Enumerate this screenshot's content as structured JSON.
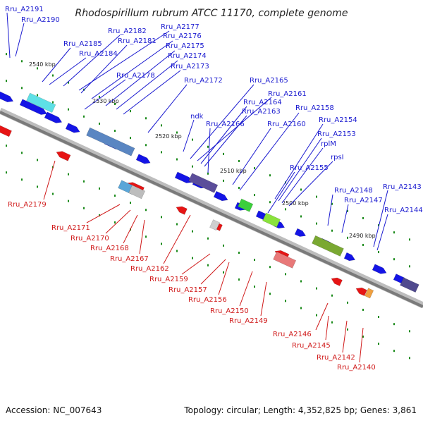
{
  "title": "Rhodospirillum rubrum ATCC 11170, complete genome",
  "footer": {
    "accession": "Accession: NC_007643",
    "topology": "Topology: circular; Length: 4,352,825 bp; Genes: 3,861"
  },
  "colors": {
    "forward_arrows": "#1414e6",
    "reverse_arrows": "#e61414",
    "backbone": "#888888",
    "tick": "#1a8a1a",
    "label_blue": "#1a1ad0",
    "label_red": "#d01a1a"
  },
  "scale_ticks": [
    "2540 kbp",
    "2530 kbp",
    "2520 kbp",
    "2510 kbp",
    "2500 kbp",
    "2490 kbp"
  ],
  "labels_top": [
    "Rru_A2191",
    "Rru_A2190",
    "Rru_A2182",
    "Rru_A2177",
    "Rru_A2185",
    "Rru_A2181",
    "Rru_A2176",
    "Rru_A2184",
    "Rru_A2175",
    "Rru_A2174",
    "Rru_A2173",
    "Rru_A2178",
    "Rru_A2172",
    "Rru_A2165",
    "Rru_A2161",
    "Rru_A2164",
    "Rru_A2163",
    "ndk",
    "Rru_A2158",
    "Rru_A2166",
    "Rru_A2160",
    "Rru_A2154",
    "Rru_A2153",
    "rplM",
    "rpsI",
    "Rru_A2155",
    "Rru_A2148",
    "Rru_A2143",
    "Rru_A2147",
    "Rru_A2144"
  ],
  "labels_bottom": [
    "Rru_A2179",
    "Rru_A2171",
    "Rru_A2170",
    "Rru_A2168",
    "Rru_A2167",
    "Rru_A2162",
    "Rru_A2159",
    "Rru_A2157",
    "Rru_A2156",
    "Rru_A2150",
    "Rru_A2149",
    "Rru_A2146",
    "Rru_A2145",
    "Rru_A2142",
    "Rru_A2140"
  ]
}
